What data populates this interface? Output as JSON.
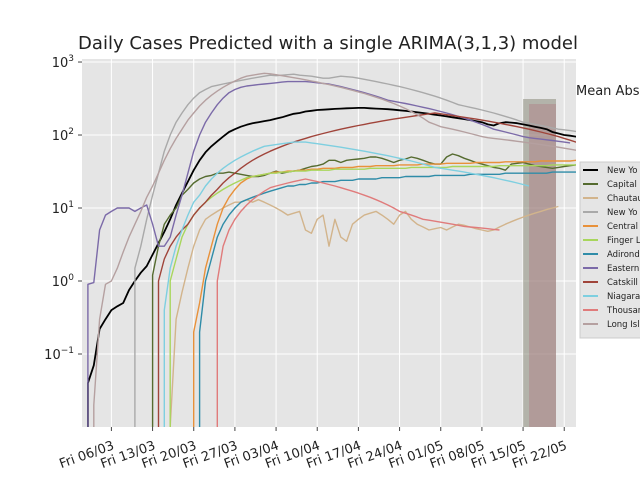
{
  "chart_data": {
    "type": "line",
    "title": "Daily Cases Predicted with a single ARIMA(3,1,3) model",
    "side_text": "Mean Abs",
    "x_axis": {
      "scale": "date",
      "ticks": [
        "Fri 06/03",
        "Fri 13/03",
        "Fri 20/03",
        "Fri 27/03",
        "Fri 03/04",
        "Fri 10/04",
        "Fri 17/04",
        "Fri 24/04",
        "Fri 01/05",
        "Fri 08/05",
        "Fri 15/05",
        "Fri 22/05"
      ],
      "range": [
        "2020-03-01",
        "2020-05-24"
      ]
    },
    "y_axis": {
      "scale": "log",
      "ticks": [
        {
          "value": 0.1,
          "base": "10",
          "exp": "−1"
        },
        {
          "value": 1,
          "base": "10",
          "exp": "0"
        },
        {
          "value": 10,
          "base": "10",
          "exp": "1"
        },
        {
          "value": 100,
          "base": "10",
          "exp": "2"
        },
        {
          "value": 1000,
          "base": "10",
          "exp": "3"
        }
      ],
      "range": [
        0.01,
        1100
      ]
    },
    "grid": true,
    "legend_position": "right (clipped)",
    "prediction_band_start": "2020-05-15",
    "series": [
      {
        "name": "New Yo",
        "color": "#000000",
        "start": "2020-03-02",
        "values": [
          0.04,
          0.07,
          0.22,
          0.3,
          0.4,
          0.45,
          0.5,
          0.75,
          1.0,
          1.3,
          1.6,
          2.3,
          3.3,
          4.7,
          7,
          11,
          16,
          23,
          33,
          45,
          58,
          70,
          82,
          95,
          110,
          120,
          130,
          138,
          145,
          150,
          155,
          160,
          168,
          175,
          185,
          195,
          200,
          210,
          215,
          220,
          222,
          225,
          228,
          230,
          232,
          234,
          235,
          235,
          232,
          230,
          228,
          226,
          222,
          218,
          214,
          210,
          205,
          200,
          195,
          190,
          185,
          180,
          175,
          170,
          165,
          160,
          155,
          150,
          140,
          135,
          145,
          150,
          148,
          145,
          140,
          135,
          130,
          125,
          120,
          110,
          105,
          100,
          98,
          95,
          90,
          85,
          82,
          80,
          78,
          75,
          72,
          70,
          68,
          65,
          62,
          60,
          58,
          57,
          56,
          55,
          55,
          54,
          53,
          53,
          52,
          51,
          50,
          50
        ]
      },
      {
        "name": "Capital",
        "color": "#556b2f",
        "start": "2020-03-13",
        "values": [
          1.2,
          3,
          6,
          8,
          10,
          15,
          18,
          22,
          25,
          27,
          28,
          30,
          30,
          31,
          30,
          29,
          28,
          27,
          27,
          28,
          30,
          32,
          30,
          31,
          32,
          33,
          35,
          37,
          38,
          40,
          45,
          45,
          42,
          45,
          46,
          47,
          48,
          50,
          50,
          48,
          45,
          42,
          45,
          47,
          50,
          48,
          45,
          42,
          40,
          40,
          50,
          55,
          52,
          48,
          45,
          42,
          40,
          38,
          36,
          35,
          33,
          40,
          41,
          42,
          40,
          38,
          37,
          36,
          35,
          36,
          37,
          38,
          39,
          40,
          38,
          37,
          36,
          35,
          34,
          33,
          32,
          32,
          33,
          34,
          35,
          36,
          37,
          38,
          39,
          40
        ]
      },
      {
        "name": "Chautau",
        "color": "#d2b48c",
        "start": "2020-03-16",
        "values": [
          0.01,
          0.3,
          0.7,
          1.5,
          3,
          5,
          7,
          8,
          9,
          10,
          11,
          12,
          12,
          13,
          12,
          13,
          12,
          11,
          10,
          9,
          8,
          8.5,
          9,
          5,
          4.5,
          7,
          8,
          3,
          7,
          4,
          3.5,
          6,
          7,
          8,
          8.5,
          9,
          8,
          7,
          6,
          8,
          9,
          7,
          6,
          5.5,
          5,
          5.2,
          5.4,
          5,
          5.5,
          6,
          5.8,
          5.5,
          5.2,
          5,
          4.8,
          5,
          5.5,
          6,
          6.5,
          7,
          7.5,
          8,
          8.5,
          9,
          9.5,
          10,
          10.5
        ]
      },
      {
        "name": "New Yo",
        "color": "#a9a9a9",
        "start": "2020-03-10",
        "values": [
          1.5,
          3,
          7,
          15,
          30,
          60,
          100,
          150,
          200,
          260,
          320,
          380,
          420,
          460,
          480,
          500,
          520,
          540,
          560,
          580,
          600,
          620,
          640,
          660,
          650,
          660,
          670,
          680,
          660,
          650,
          640,
          620,
          600,
          600,
          620,
          640,
          630,
          620,
          600,
          580,
          560,
          540,
          520,
          500,
          480,
          460,
          440,
          420,
          400,
          380,
          360,
          340,
          320,
          300,
          280,
          260,
          250,
          240,
          230,
          220,
          210,
          200,
          190,
          180,
          170,
          160,
          150,
          145,
          140,
          135,
          130,
          125,
          120,
          118,
          115,
          112,
          110,
          108,
          105,
          100,
          98,
          95,
          92,
          90
        ]
      },
      {
        "name": "Central",
        "color": "#e8913a",
        "start": "2020-03-20",
        "values": [
          0.2,
          0.5,
          1.5,
          3,
          6,
          10,
          14,
          18,
          22,
          25,
          27,
          28,
          29,
          30,
          31,
          31,
          32,
          32,
          33,
          33,
          34,
          34,
          35,
          35,
          35,
          36,
          36,
          36,
          37,
          37,
          37,
          38,
          38,
          38,
          38,
          39,
          39,
          39,
          39,
          40,
          40,
          40,
          40,
          41,
          41,
          41,
          41,
          41,
          42,
          42,
          42,
          42,
          42,
          43,
          43,
          43,
          43,
          43,
          43,
          44,
          44,
          44,
          44,
          44,
          44,
          45,
          45
        ]
      },
      {
        "name": "Finger L",
        "color": "#a8d65c",
        "start": "2020-03-16",
        "values": [
          1,
          2,
          4,
          6,
          8,
          10,
          12,
          14,
          16,
          18,
          20,
          22,
          24,
          26,
          27,
          28,
          29,
          30,
          30,
          31,
          31,
          32,
          32,
          32,
          33,
          33,
          33,
          33,
          34,
          34,
          34,
          34,
          34,
          34,
          35,
          35,
          35,
          35,
          35,
          35,
          35,
          36,
          36,
          36,
          36,
          36,
          36,
          36,
          37,
          37,
          37,
          37,
          37,
          37,
          37,
          37,
          38,
          38,
          38,
          38,
          38,
          38,
          38,
          38,
          38,
          39,
          39,
          39,
          39,
          39
        ]
      },
      {
        "name": "Adironda",
        "color": "#2f8ca8",
        "start": "2020-03-21",
        "values": [
          0.2,
          1,
          2,
          4,
          6,
          8,
          10,
          12,
          13,
          14,
          15,
          16,
          17,
          18,
          19,
          20,
          20,
          21,
          21,
          22,
          22,
          23,
          23,
          23,
          24,
          24,
          24,
          25,
          25,
          25,
          25,
          26,
          26,
          26,
          26,
          27,
          27,
          27,
          27,
          27,
          28,
          28,
          28,
          28,
          28,
          28,
          29,
          29,
          29,
          29,
          29,
          29,
          30,
          30,
          30,
          30,
          30,
          30,
          30,
          30,
          31,
          31,
          31,
          31,
          31
        ]
      },
      {
        "name": "Eastern",
        "color": "#7b6aa8",
        "start": "2020-03-02",
        "values": [
          0.9,
          0.95,
          5,
          8,
          9,
          10,
          10,
          10,
          9,
          10,
          11,
          6,
          3,
          3,
          4,
          8,
          15,
          30,
          60,
          100,
          150,
          200,
          260,
          320,
          380,
          420,
          450,
          470,
          480,
          490,
          500,
          510,
          520,
          530,
          540,
          540,
          540,
          540,
          530,
          520,
          510,
          500,
          480,
          460,
          440,
          420,
          400,
          380,
          360,
          340,
          320,
          300,
          290,
          280,
          270,
          260,
          250,
          240,
          230,
          220,
          210,
          200,
          190,
          180,
          170,
          160,
          150,
          140,
          130,
          120,
          115,
          110,
          105,
          100,
          95,
          92,
          90,
          88,
          86,
          84,
          82,
          80,
          78
        ]
      },
      {
        "name": "Catskill",
        "color": "#a0443a",
        "start": "2020-03-14",
        "values": [
          1,
          2,
          3,
          4,
          5,
          6,
          8,
          10,
          12,
          15,
          18,
          22,
          26,
          30,
          35,
          40,
          45,
          50,
          55,
          60,
          65,
          70,
          75,
          80,
          85,
          90,
          95,
          100,
          105,
          110,
          115,
          120,
          125,
          130,
          135,
          140,
          145,
          150,
          155,
          160,
          165,
          170,
          175,
          180,
          185,
          190,
          195,
          200,
          195,
          190,
          185,
          180,
          175,
          170,
          165,
          160,
          155,
          150,
          145,
          140,
          135,
          130,
          125,
          120,
          115,
          110,
          105,
          100,
          95,
          90,
          85,
          80,
          78,
          76,
          74,
          72,
          70
        ]
      },
      {
        "name": "Niagara",
        "color": "#7ecfe0",
        "start": "2020-03-15",
        "values": [
          0.4,
          1.5,
          3,
          5,
          8,
          12,
          15,
          20,
          25,
          30,
          35,
          40,
          45,
          50,
          55,
          60,
          65,
          70,
          72,
          74,
          76,
          78,
          80,
          80,
          80,
          78,
          76,
          74,
          72,
          70,
          68,
          66,
          64,
          62,
          60,
          58,
          56,
          54,
          52,
          50,
          48,
          46,
          44,
          42,
          40,
          38,
          36,
          35,
          34,
          33,
          32,
          31,
          30,
          29,
          28,
          27,
          26,
          25,
          24,
          23,
          22,
          21,
          20
        ]
      },
      {
        "name": "Thousan",
        "color": "#e07b7b",
        "start": "2020-03-24",
        "values": [
          1,
          3,
          5,
          7,
          9,
          11,
          13,
          15,
          17,
          19,
          20,
          21,
          22,
          23,
          24,
          25,
          24,
          23,
          22,
          21,
          20,
          19,
          18,
          17,
          16,
          15,
          14,
          13,
          12,
          11,
          10,
          9,
          8.5,
          8,
          7.5,
          7,
          6.8,
          6.6,
          6.4,
          6.2,
          6,
          5.8,
          5.6,
          5.5,
          5.4,
          5.3,
          5.2,
          5.1,
          5
        ]
      },
      {
        "name": "Long Isl",
        "color": "#b5a0a0",
        "start": "2020-03-03",
        "values": [
          0.02,
          0.3,
          0.9,
          1.0,
          1.5,
          2.5,
          4,
          6,
          9,
          14,
          20,
          30,
          45,
          65,
          90,
          120,
          160,
          200,
          250,
          300,
          350,
          400,
          450,
          500,
          550,
          600,
          640,
          660,
          680,
          700,
          690,
          670,
          650,
          630,
          610,
          590,
          570,
          550,
          530,
          510,
          490,
          470,
          450,
          430,
          410,
          390,
          370,
          350,
          330,
          310,
          290,
          270,
          250,
          230,
          210,
          190,
          170,
          150,
          140,
          130,
          125,
          120,
          115,
          110,
          105,
          100,
          95,
          92,
          90,
          88,
          86,
          84,
          82,
          80,
          78,
          76,
          74,
          72,
          70,
          68,
          66,
          64,
          62,
          60
        ]
      }
    ]
  }
}
